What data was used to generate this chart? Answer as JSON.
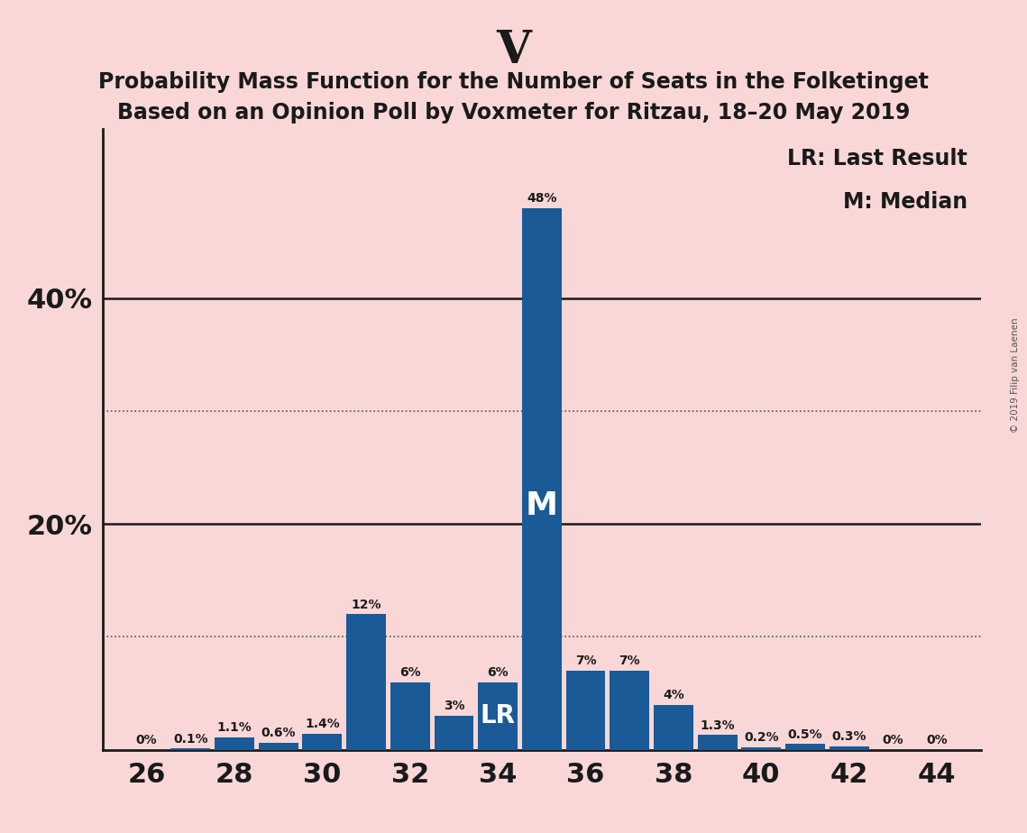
{
  "title_big": "V",
  "title_line1": "Probability Mass Function for the Number of Seats in the Folketinget",
  "title_line2": "Based on an Opinion Poll by Voxmeter for Ritzau, 18–20 May 2019",
  "seats": [
    26,
    27,
    28,
    29,
    30,
    31,
    32,
    33,
    34,
    35,
    36,
    37,
    38,
    39,
    40,
    41,
    42,
    43,
    44
  ],
  "probs": [
    0.0,
    0.1,
    1.1,
    0.6,
    1.4,
    12.0,
    6.0,
    3.0,
    6.0,
    48.0,
    7.0,
    7.0,
    4.0,
    1.3,
    0.2,
    0.5,
    0.3,
    0.0,
    0.0
  ],
  "labels": [
    "0%",
    "0.1%",
    "1.1%",
    "0.6%",
    "1.4%",
    "12%",
    "6%",
    "3%",
    "6%",
    "48%",
    "7%",
    "7%",
    "4%",
    "1.3%",
    "0.2%",
    "0.5%",
    "0.3%",
    "0%",
    "0%"
  ],
  "bar_color": "#1a5a96",
  "background_color": "#f9d7d7",
  "median_seat": 35,
  "lr_seat": 34,
  "dotted_lines": [
    10,
    30
  ],
  "solid_lines": [
    20,
    40
  ],
  "legend_text1": "LR: Last Result",
  "legend_text2": "M: Median",
  "watermark": "© 2019 Filip van Laenen",
  "xlim": [
    25.0,
    45.0
  ],
  "ylim": [
    0,
    55
  ]
}
